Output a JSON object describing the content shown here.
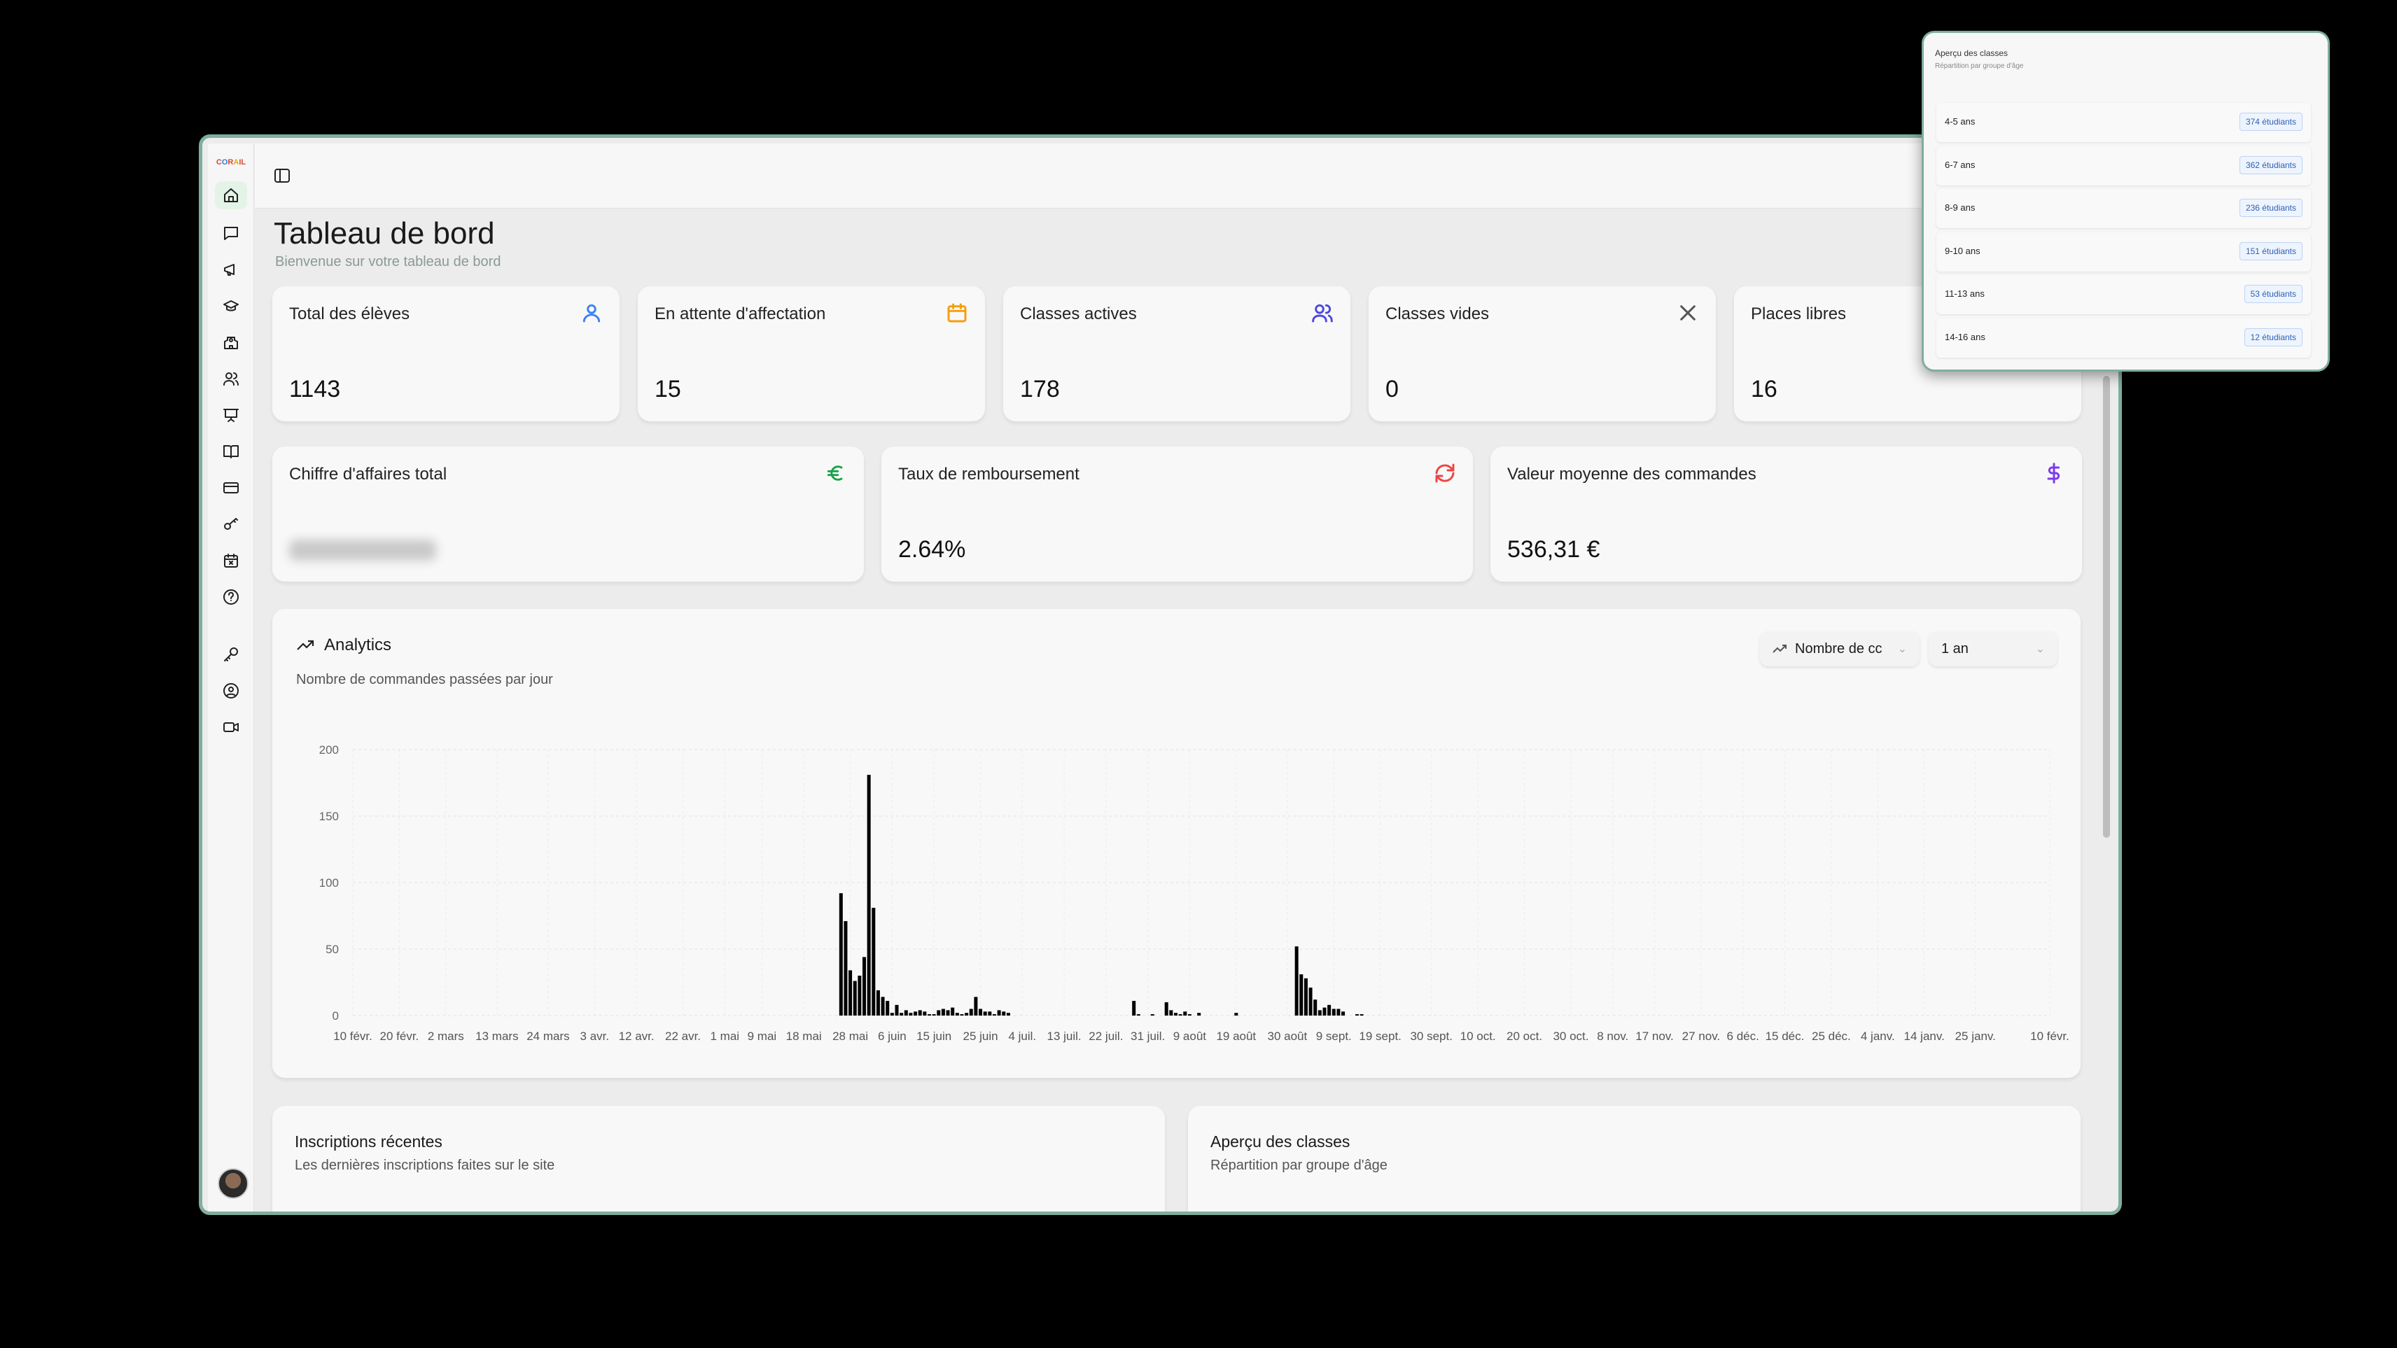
{
  "header": {
    "title": "Tableau de bord",
    "subtitle": "Bienvenue sur votre tableau de bord"
  },
  "logo": "Cursus CORAIL",
  "sidebar": {
    "items": [
      {
        "icon": "home-icon",
        "active": true
      },
      {
        "icon": "message-icon"
      },
      {
        "icon": "megaphone-icon"
      },
      {
        "icon": "graduation-cap-icon"
      },
      {
        "icon": "school-icon"
      },
      {
        "icon": "users-icon"
      },
      {
        "icon": "presentation-icon"
      },
      {
        "icon": "book-icon"
      },
      {
        "icon": "credit-card-icon"
      },
      {
        "icon": "key-round-icon"
      },
      {
        "icon": "calendar-x-icon"
      },
      {
        "icon": "help-circle-icon"
      },
      {
        "icon": "key-icon"
      },
      {
        "icon": "user-circle-icon"
      },
      {
        "icon": "video-icon"
      }
    ]
  },
  "stats": [
    {
      "label": "Total des élèves",
      "value": "1143",
      "icon": "user-icon",
      "color": "#3b82f6"
    },
    {
      "label": "En attente d'affectation",
      "value": "15",
      "icon": "calendar-icon",
      "color": "#f59e0b"
    },
    {
      "label": "Classes actives",
      "value": "178",
      "icon": "users-icon",
      "color": "#4f46e5"
    },
    {
      "label": "Classes vides",
      "value": "0",
      "icon": "x-icon",
      "color": "#555555"
    },
    {
      "label": "Places libres",
      "value": "16",
      "icon": "",
      "color": ""
    }
  ],
  "finance": [
    {
      "label": "Chiffre d'affaires total",
      "value_blurred": true,
      "icon": "euro-icon",
      "color": "#16a34a"
    },
    {
      "label": "Taux de remboursement",
      "value": "2.64%",
      "icon": "refresh-icon",
      "color": "#ef4444"
    },
    {
      "label": "Valeur moyenne des commandes",
      "value": "536,31 €",
      "icon": "dollar-icon",
      "color": "#7c3aed"
    }
  ],
  "analytics": {
    "title": "Analytics",
    "subtitle": "Nombre de commandes passées par jour",
    "metric_select": "Nombre de cc",
    "period_select": "1 an"
  },
  "chart_data": {
    "type": "bar",
    "ylim": [
      0,
      200
    ],
    "yticks": [
      0,
      50,
      100,
      150,
      200
    ],
    "grid": true,
    "color": "#000000",
    "xticks": [
      "10 févr.",
      "20 févr.",
      "2 mars",
      "13 mars",
      "24 mars",
      "3 avr.",
      "12 avr.",
      "22 avr.",
      "1 mai",
      "9 mai",
      "18 mai",
      "28 mai",
      "6 juin",
      "15 juin",
      "25 juin",
      "4 juil.",
      "13 juil.",
      "22 juil.",
      "31 juil.",
      "9 août",
      "19 août",
      "30 août",
      "9 sept.",
      "19 sept.",
      "30 sept.",
      "10 oct.",
      "20 oct.",
      "30 oct.",
      "8 nov.",
      "17 nov.",
      "27 nov.",
      "6 déc.",
      "15 déc.",
      "25 déc.",
      "4 janv.",
      "14 janv.",
      "25 janv.",
      "10 févr."
    ],
    "points": [
      [
        "26 mai",
        92
      ],
      [
        "27 mai",
        71
      ],
      [
        "28 mai",
        34
      ],
      [
        "29 mai",
        26
      ],
      [
        "30 mai",
        30
      ],
      [
        "31 mai",
        44
      ],
      [
        "1 juin",
        181
      ],
      [
        "2 juin",
        81
      ],
      [
        "3 juin",
        19
      ],
      [
        "4 juin",
        14
      ],
      [
        "5 juin",
        11
      ],
      [
        "6 juin",
        2
      ],
      [
        "7 juin",
        8
      ],
      [
        "8 juin",
        2
      ],
      [
        "9 juin",
        4
      ],
      [
        "10 juin",
        2
      ],
      [
        "11 juin",
        3
      ],
      [
        "12 juin",
        4
      ],
      [
        "13 juin",
        3
      ],
      [
        "14 juin",
        1
      ],
      [
        "15 juin",
        1
      ],
      [
        "16 juin",
        4
      ],
      [
        "17 juin",
        5
      ],
      [
        "18 juin",
        4
      ],
      [
        "19 juin",
        6
      ],
      [
        "20 juin",
        2
      ],
      [
        "21 juin",
        1
      ],
      [
        "22 juin",
        2
      ],
      [
        "23 juin",
        5
      ],
      [
        "24 juin",
        14
      ],
      [
        "25 juin",
        5
      ],
      [
        "26 juin",
        3
      ],
      [
        "27 juin",
        3
      ],
      [
        "28 juin",
        1
      ],
      [
        "29 juin",
        4
      ],
      [
        "30 juin",
        3
      ],
      [
        "1 juil.",
        2
      ],
      [
        "28 juil.",
        11
      ],
      [
        "29 juil.",
        1
      ],
      [
        "1 août",
        1
      ],
      [
        "4 août",
        10
      ],
      [
        "5 août",
        4
      ],
      [
        "6 août",
        2
      ],
      [
        "7 août",
        1
      ],
      [
        "8 août",
        3
      ],
      [
        "9 août",
        1
      ],
      [
        "11 août",
        2
      ],
      [
        "19 août",
        2
      ],
      [
        "1 sept.",
        52
      ],
      [
        "2 sept.",
        31
      ],
      [
        "3 sept.",
        28
      ],
      [
        "4 sept.",
        21
      ],
      [
        "5 sept.",
        12
      ],
      [
        "6 sept.",
        4
      ],
      [
        "7 sept.",
        6
      ],
      [
        "8 sept.",
        8
      ],
      [
        "9 sept.",
        5
      ],
      [
        "10 sept.",
        5
      ],
      [
        "11 sept.",
        3
      ],
      [
        "14 sept.",
        1
      ],
      [
        "15 sept.",
        1
      ]
    ]
  },
  "bottom": [
    {
      "title": "Inscriptions récentes",
      "subtitle": "Les dernières inscriptions faites sur le site"
    },
    {
      "title": "Aperçu des classes",
      "subtitle": "Répartition par groupe d'âge"
    }
  ],
  "popup": {
    "title": "Aperçu des classes",
    "subtitle": "Répartition par groupe d'âge",
    "rows": [
      {
        "label": "4-5 ans",
        "badge": "374 étudiants"
      },
      {
        "label": "6-7 ans",
        "badge": "362 étudiants"
      },
      {
        "label": "8-9 ans",
        "badge": "236 étudiants"
      },
      {
        "label": "9-10 ans",
        "badge": "151 étudiants"
      },
      {
        "label": "11-13 ans",
        "badge": "53 étudiants"
      },
      {
        "label": "14-16 ans",
        "badge": "12 étudiants"
      }
    ]
  }
}
